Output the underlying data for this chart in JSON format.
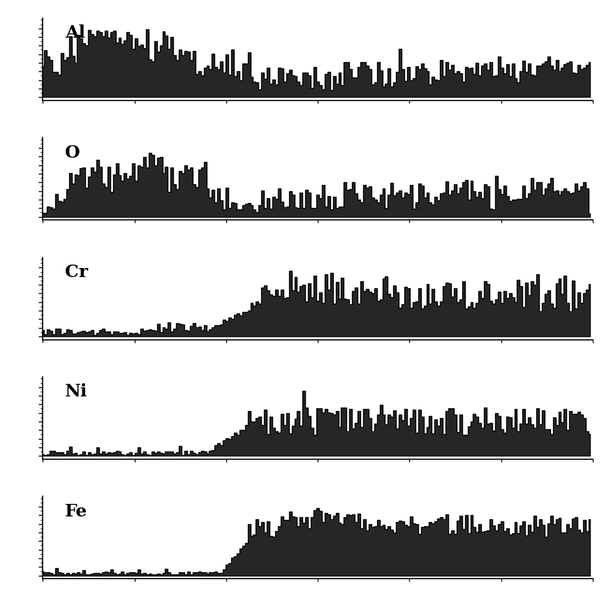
{
  "elements": [
    "Al",
    "O",
    "Cr",
    "Ni",
    "Fe"
  ],
  "n_points": 200,
  "figsize": [
    8.75,
    8.64
  ],
  "dpi": 100,
  "background": "#ffffff",
  "line_color": "#000000",
  "label_fontsize": 18,
  "label_fontweight": "bold"
}
